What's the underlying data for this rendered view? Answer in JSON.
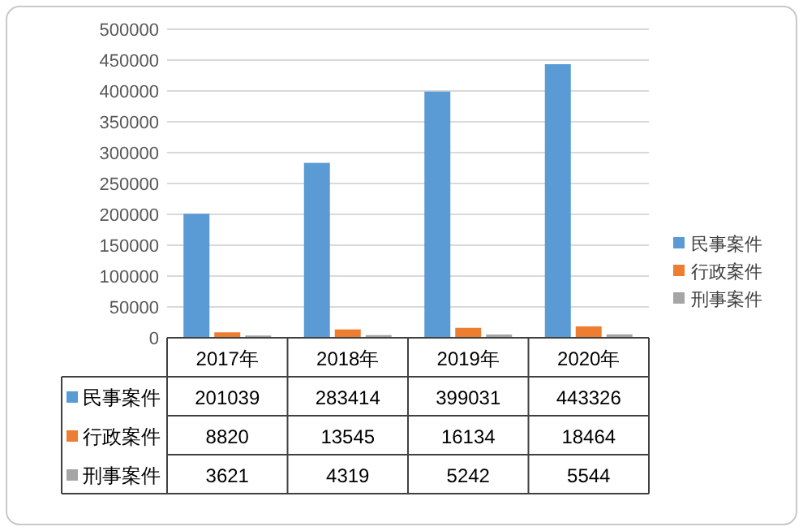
{
  "chart_data": {
    "type": "bar",
    "categories": [
      "2017年",
      "2018年",
      "2019年",
      "2020年"
    ],
    "series": [
      {
        "name": "民事案件",
        "color": "#5b9bd5",
        "values": [
          201039,
          283414,
          399031,
          443326
        ]
      },
      {
        "name": "行政案件",
        "color": "#ed7d31",
        "values": [
          8820,
          13545,
          16134,
          18464
        ]
      },
      {
        "name": "刑事案件",
        "color": "#a5a5a5",
        "values": [
          3621,
          4319,
          5242,
          5544
        ]
      }
    ],
    "ylim": [
      0,
      500000
    ],
    "yticks": [
      0,
      50000,
      100000,
      150000,
      200000,
      250000,
      300000,
      350000,
      400000,
      450000,
      500000
    ],
    "grid": "y",
    "legend": "right",
    "data_labels": true
  }
}
